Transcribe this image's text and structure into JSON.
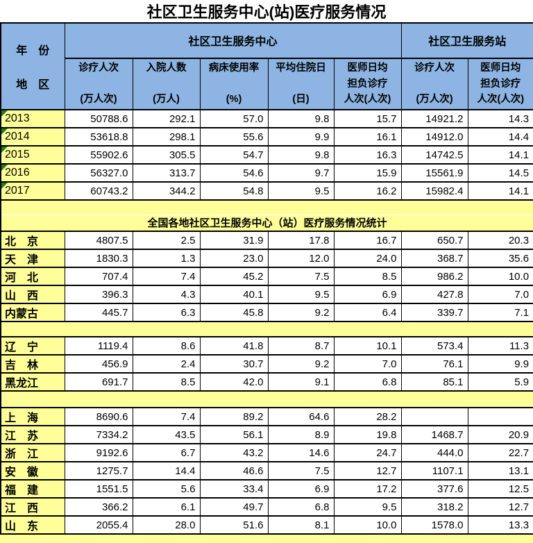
{
  "title": "社区卫生服务中心(站)医疗服务情况",
  "colors": {
    "header_blue": "#8DB4E2",
    "row_yellow": "#FFFF99",
    "cell_white": "#FFFFFF",
    "flag_green": "#1E7D1E",
    "border_black": "#000000"
  },
  "table": {
    "corner": {
      "line1": "年　份",
      "line2": "地　区"
    },
    "groups": [
      {
        "label": "社区卫生服务中心"
      },
      {
        "label": "社区卫生服务站"
      }
    ],
    "columns": [
      {
        "name": "诊疗人次",
        "unit": "(万人次)"
      },
      {
        "name": "入院人数",
        "unit": "(万人)"
      },
      {
        "name": "病床使用率",
        "unit": "(%)"
      },
      {
        "name": "平均住院日",
        "unit": "(日)"
      },
      {
        "name": "医师日均",
        "name2": "担负诊疗",
        "unit": "人次(人次)"
      },
      {
        "name": "诊疗人次",
        "unit": "(万人次)"
      },
      {
        "name": "医师日均",
        "name2": "担负诊疗",
        "unit": "人次(人次)"
      }
    ],
    "years": [
      {
        "label": "2013",
        "values": [
          "50788.6",
          "292.1",
          "57.0",
          "9.8",
          "15.7",
          "14921.2",
          "14.3"
        ]
      },
      {
        "label": "2014",
        "values": [
          "53618.8",
          "298.1",
          "55.6",
          "9.9",
          "16.1",
          "14912.0",
          "14.4"
        ]
      },
      {
        "label": "2015",
        "values": [
          "55902.6",
          "305.5",
          "54.7",
          "9.8",
          "16.3",
          "14742.5",
          "14.1"
        ]
      },
      {
        "label": "2016",
        "values": [
          "56327.0",
          "313.7",
          "54.6",
          "9.7",
          "15.9",
          "15561.9",
          "14.5"
        ]
      },
      {
        "label": "2017",
        "values": [
          "60743.2",
          "344.2",
          "54.8",
          "9.5",
          "16.2",
          "15982.4",
          "14.1"
        ]
      }
    ],
    "section_title": "全国各地社区卫生服务中心（站）医疗服务情况统计",
    "province_groups": [
      {
        "rows": [
          {
            "label": "北　京",
            "values": [
              "4807.5",
              "2.5",
              "31.9",
              "17.8",
              "16.7",
              "650.7",
              "20.3"
            ]
          },
          {
            "label": "天　津",
            "values": [
              "1830.3",
              "1.3",
              "23.0",
              "12.0",
              "24.0",
              "368.7",
              "35.6"
            ]
          },
          {
            "label": "河　北",
            "values": [
              "707.4",
              "7.4",
              "45.2",
              "7.5",
              "8.5",
              "986.2",
              "10.0"
            ]
          },
          {
            "label": "山　西",
            "values": [
              "396.3",
              "4.3",
              "40.1",
              "9.5",
              "6.9",
              "427.8",
              "7.0"
            ]
          },
          {
            "label": "内蒙古",
            "values": [
              "445.7",
              "6.3",
              "45.8",
              "9.2",
              "6.4",
              "339.7",
              "7.1"
            ]
          }
        ]
      },
      {
        "rows": [
          {
            "label": "辽　宁",
            "values": [
              "1119.4",
              "8.6",
              "41.8",
              "8.7",
              "10.1",
              "573.4",
              "11.3"
            ]
          },
          {
            "label": "吉　林",
            "values": [
              "456.9",
              "2.4",
              "30.7",
              "9.2",
              "7.0",
              "76.1",
              "9.9"
            ]
          },
          {
            "label": "黑龙江",
            "values": [
              "691.7",
              "8.5",
              "42.0",
              "9.1",
              "6.8",
              "85.1",
              "5.9"
            ]
          }
        ]
      },
      {
        "rows": [
          {
            "label": "上　海",
            "values": [
              "8690.6",
              "7.4",
              "89.2",
              "64.6",
              "28.2",
              "",
              ""
            ]
          },
          {
            "label": "江　苏",
            "values": [
              "7334.2",
              "43.5",
              "56.1",
              "8.9",
              "19.8",
              "1468.7",
              "20.9"
            ]
          },
          {
            "label": "浙　江",
            "values": [
              "9192.6",
              "6.7",
              "43.2",
              "14.6",
              "24.7",
              "444.0",
              "22.7"
            ]
          },
          {
            "label": "安　徽",
            "values": [
              "1275.7",
              "14.4",
              "46.6",
              "7.5",
              "12.7",
              "1107.1",
              "13.1"
            ]
          },
          {
            "label": "福　建",
            "values": [
              "1551.5",
              "5.6",
              "33.4",
              "6.9",
              "17.2",
              "377.6",
              "12.5"
            ]
          },
          {
            "label": "江　西",
            "values": [
              "366.2",
              "6.1",
              "49.7",
              "6.8",
              "9.5",
              "318.2",
              "12.7"
            ]
          },
          {
            "label": "山　东",
            "values": [
              "2055.4",
              "28.0",
              "51.6",
              "8.1",
              "10.0",
              "1578.0",
              "13.3"
            ]
          }
        ]
      }
    ]
  }
}
